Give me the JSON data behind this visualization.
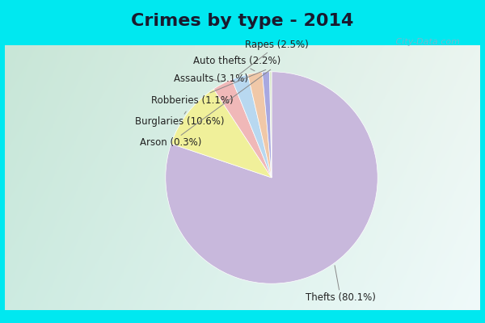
{
  "title": "Crimes by type - 2014",
  "slices": [
    {
      "label": "Thefts",
      "pct": 80.1,
      "color": "#c8b8dc"
    },
    {
      "label": "Burglaries",
      "pct": 10.6,
      "color": "#f0f09a"
    },
    {
      "label": "Assaults",
      "pct": 3.1,
      "color": "#f0b8b8"
    },
    {
      "label": "Rapes",
      "pct": 2.5,
      "color": "#b8d8f0"
    },
    {
      "label": "Auto thefts",
      "pct": 2.2,
      "color": "#f0c8a8"
    },
    {
      "label": "Robberies",
      "pct": 1.1,
      "color": "#a8a8e0"
    },
    {
      "label": "Arson",
      "pct": 0.3,
      "color": "#d8e8c8"
    }
  ],
  "cyan_border": "#00e8f0",
  "title_fontsize": 16,
  "label_fontsize": 8.5,
  "watermark": " City-Data.com"
}
